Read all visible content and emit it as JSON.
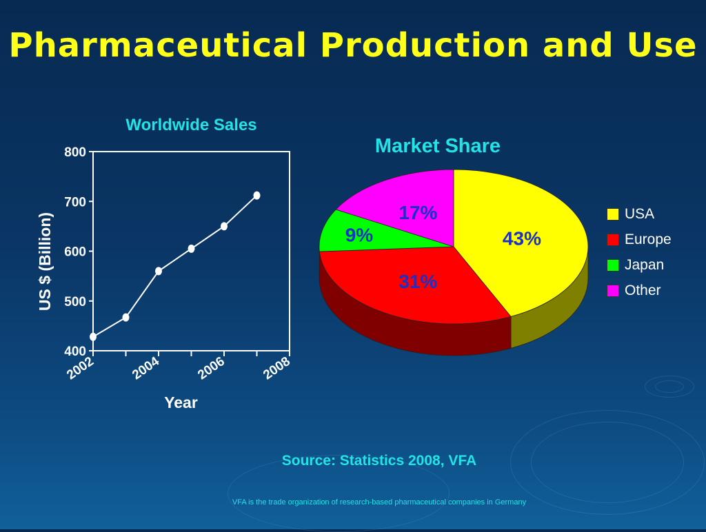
{
  "title": "Pharmaceutical Production and Use",
  "source": "Source: Statistics 2008, VFA",
  "footer": "VFA is the trade organization of research-based pharmaceutical companies in Germany",
  "colors": {
    "title": "#ffff1a",
    "subtitle": "#22e3e6",
    "pie_label": "#1a30c8"
  },
  "chart_data": [
    {
      "type": "line",
      "title": "Worldwide Sales",
      "xlabel": "Year",
      "ylabel": "US $ (Billion)",
      "xlim": [
        2002,
        2008
      ],
      "ylim": [
        400,
        800
      ],
      "x_ticks": [
        "2002",
        "2004",
        "2006",
        "2008"
      ],
      "y_ticks": [
        "400",
        "500",
        "600",
        "700",
        "800"
      ],
      "series": [
        {
          "x": [
            2002,
            2003,
            2004,
            2005,
            2006,
            2007
          ],
          "values": [
            428,
            467,
            560,
            605,
            650,
            712
          ]
        }
      ],
      "grid": false,
      "color": "#ffffff"
    },
    {
      "type": "pie",
      "style": "3d",
      "title": "Market Share",
      "slices": [
        {
          "label": "USA",
          "value": 43,
          "text": "43%",
          "color": "#ffff00"
        },
        {
          "label": "Europe",
          "value": 31,
          "text": "31%",
          "color": "#ff0000"
        },
        {
          "label": "Japan",
          "value": 9,
          "text": "9%",
          "color": "#00ff00"
        },
        {
          "label": "Other",
          "value": 17,
          "text": "17%",
          "color": "#ff00ff"
        }
      ],
      "legend_position": "right"
    }
  ]
}
